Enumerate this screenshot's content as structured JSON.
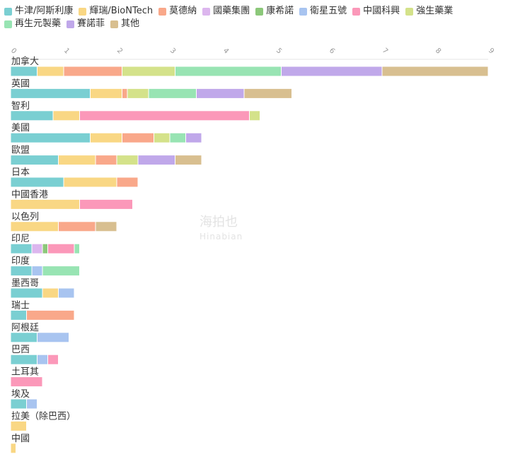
{
  "chart_data": {
    "type": "bar",
    "orientation": "horizontal",
    "stacked": true,
    "legend_position": "top",
    "xlim": [
      0,
      9
    ],
    "x_ticks": [
      "0",
      "1",
      "2",
      "3",
      "4",
      "5",
      "6",
      "7",
      "8",
      "9"
    ],
    "categories": [
      "加拿大",
      "英國",
      "智利",
      "美國",
      "歐盟",
      "日本",
      "中國香港",
      "以色列",
      "印尼",
      "印度",
      "墨西哥",
      "瑞士",
      "阿根廷",
      "巴西",
      "土耳其",
      "埃及",
      "拉美（除巴西）",
      "中國"
    ],
    "series": [
      {
        "name": "牛津/阿斯利康",
        "color": "#7acfd2",
        "values": [
          0.5,
          1.5,
          0.8,
          1.5,
          0.9,
          1.0,
          0,
          0,
          0.4,
          0.4,
          0.6,
          0.3,
          0.5,
          0.5,
          0,
          0.3,
          0,
          0
        ]
      },
      {
        "name": "輝瑞/BioNTech",
        "color": "#f9d784",
        "values": [
          0.5,
          0.6,
          0.5,
          0.6,
          0.7,
          1.0,
          1.3,
          0.9,
          0,
          0,
          0.3,
          0,
          0,
          0,
          0,
          0,
          0.3,
          0.1
        ]
      },
      {
        "name": "莫德納",
        "color": "#f9a88a",
        "values": [
          1.1,
          0.1,
          0,
          0.6,
          0.4,
          0.4,
          0,
          0.7,
          0,
          0,
          0,
          0.9,
          0,
          0,
          0,
          0,
          0,
          0
        ]
      },
      {
        "name": "國藥集團",
        "color": "#dcb6ee",
        "values": [
          0,
          0,
          0,
          0,
          0,
          0,
          0,
          0,
          0.2,
          0,
          0,
          0,
          0,
          0,
          0,
          0,
          0,
          0
        ]
      },
      {
        "name": "康希諾",
        "color": "#8cc87a",
        "values": [
          0,
          0,
          0,
          0,
          0,
          0,
          0,
          0,
          0.1,
          0,
          0,
          0,
          0,
          0,
          0,
          0,
          0,
          0
        ]
      },
      {
        "name": "衛星五號",
        "color": "#a8c4f0",
        "values": [
          0,
          0,
          0,
          0,
          0,
          0,
          0,
          0,
          0,
          0.2,
          0.3,
          0,
          0.6,
          0.2,
          0,
          0.2,
          0,
          0
        ]
      },
      {
        "name": "中國科興",
        "color": "#fb98b9",
        "values": [
          0,
          0,
          3.2,
          0,
          0,
          0,
          1.0,
          0,
          0.5,
          0,
          0,
          0,
          0,
          0.2,
          0.6,
          0,
          0,
          0
        ]
      },
      {
        "name": "強生藥業",
        "color": "#d4e28a",
        "values": [
          1.0,
          0.4,
          0.2,
          0.3,
          0.4,
          0,
          0,
          0,
          0,
          0,
          0,
          0,
          0,
          0,
          0,
          0,
          0,
          0
        ]
      },
      {
        "name": "再生元製藥",
        "color": "#98e4b3",
        "values": [
          2.0,
          0.9,
          0,
          0.3,
          0,
          0,
          0,
          0,
          0.1,
          0.7,
          0,
          0,
          0,
          0,
          0,
          0,
          0,
          0
        ]
      },
      {
        "name": "賽諾菲",
        "color": "#c0a8ea",
        "values": [
          1.9,
          0.9,
          0,
          0.3,
          0.7,
          0,
          0,
          0,
          0,
          0,
          0,
          0,
          0,
          0,
          0,
          0,
          0,
          0
        ]
      },
      {
        "name": "其他",
        "color": "#d8bf90",
        "values": [
          2.0,
          0.9,
          0,
          0,
          0.5,
          0,
          0,
          0.4,
          0,
          0,
          0,
          0,
          0,
          0,
          0,
          0,
          0,
          0
        ]
      }
    ]
  },
  "watermark": {
    "main": "海拍也",
    "sub": "Hinabian"
  }
}
